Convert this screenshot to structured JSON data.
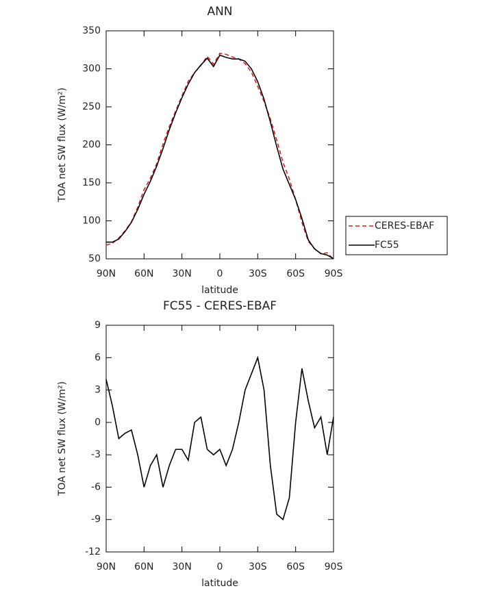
{
  "chart_data": [
    {
      "type": "line",
      "title": "ANN",
      "xlabel": "latitude",
      "ylabel": "TOA net SW flux (W/m²)",
      "x": [
        90,
        85,
        80,
        75,
        70,
        65,
        60,
        55,
        50,
        45,
        40,
        35,
        30,
        25,
        20,
        15,
        10,
        5,
        0,
        -5,
        -10,
        -15,
        -20,
        -25,
        -30,
        -35,
        -40,
        -45,
        -50,
        -55,
        -60,
        -65,
        -70,
        -75,
        -80,
        -85,
        -90
      ],
      "series": [
        {
          "name": "CERES-EBAF",
          "color": "#e41a1c",
          "dash": true,
          "values": [
            68,
            70.5,
            77.5,
            87,
            98.7,
            118,
            141,
            156,
            175,
            201,
            224,
            244.5,
            264.5,
            283.5,
            295,
            304.5,
            316.5,
            306,
            320.5,
            319,
            315.5,
            313,
            307,
            295.5,
            277,
            257,
            234,
            206.5,
            177,
            155,
            128,
            98,
            73,
            63.5,
            56.5,
            58,
            49.5
          ]
        },
        {
          "name": "FC55",
          "color": "#000000",
          "dash": false,
          "values": [
            72,
            72,
            76,
            86,
            98,
            115,
            135,
            152,
            172,
            195,
            220,
            242,
            262,
            280,
            295,
            305,
            314,
            303,
            318,
            315,
            313,
            313,
            310,
            300,
            283,
            260,
            230,
            198,
            168,
            148,
            128,
            103,
            75,
            63,
            57,
            55,
            50
          ]
        }
      ],
      "xlim": [
        90,
        -90
      ],
      "xticks": [
        {
          "value": 90,
          "label": "90N"
        },
        {
          "value": 60,
          "label": "60N"
        },
        {
          "value": 30,
          "label": "30N"
        },
        0,
        {
          "value": -30,
          "label": "30S"
        },
        {
          "value": -60,
          "label": "60S"
        },
        {
          "value": -90,
          "label": "90S"
        }
      ],
      "ylim": [
        50,
        350
      ],
      "yticks": [
        50,
        100,
        150,
        200,
        250,
        300,
        350
      ],
      "grid": false,
      "legend": "right"
    },
    {
      "type": "line",
      "title": "FC55 - CERES-EBAF",
      "xlabel": "latitude",
      "ylabel": "TOA net SW flux (W/m²)",
      "x": [
        90,
        85,
        80,
        75,
        70,
        65,
        60,
        55,
        50,
        45,
        40,
        35,
        30,
        25,
        20,
        15,
        10,
        5,
        0,
        -5,
        -10,
        -15,
        -20,
        -25,
        -30,
        -35,
        -40,
        -45,
        -50,
        -55,
        -60,
        -65,
        -70,
        -75,
        -80,
        -85,
        -90
      ],
      "series": [
        {
          "color": "#000000",
          "dash": false,
          "values": [
            4,
            1.5,
            -1.5,
            -1,
            -0.7,
            -3,
            -6,
            -4,
            -3,
            -6,
            -4,
            -2.5,
            -2.5,
            -3.5,
            0,
            0.5,
            -2.5,
            -3,
            -2.5,
            -4,
            -2.5,
            0,
            3,
            4.5,
            6,
            3,
            -4,
            -8.5,
            -9,
            -7,
            0,
            5,
            2,
            -0.5,
            0.5,
            -3,
            0.5
          ]
        }
      ],
      "xlim": [
        90,
        -90
      ],
      "xticks": [
        {
          "value": 90,
          "label": "90N"
        },
        {
          "value": 60,
          "label": "60N"
        },
        {
          "value": 30,
          "label": "30N"
        },
        0,
        {
          "value": -30,
          "label": "30S"
        },
        {
          "value": -60,
          "label": "60S"
        },
        {
          "value": -90,
          "label": "90S"
        }
      ],
      "ylim": [
        -12,
        9
      ],
      "yticks": [
        -12,
        -9,
        -6,
        -3,
        0,
        3,
        6,
        9
      ],
      "grid": false
    }
  ]
}
